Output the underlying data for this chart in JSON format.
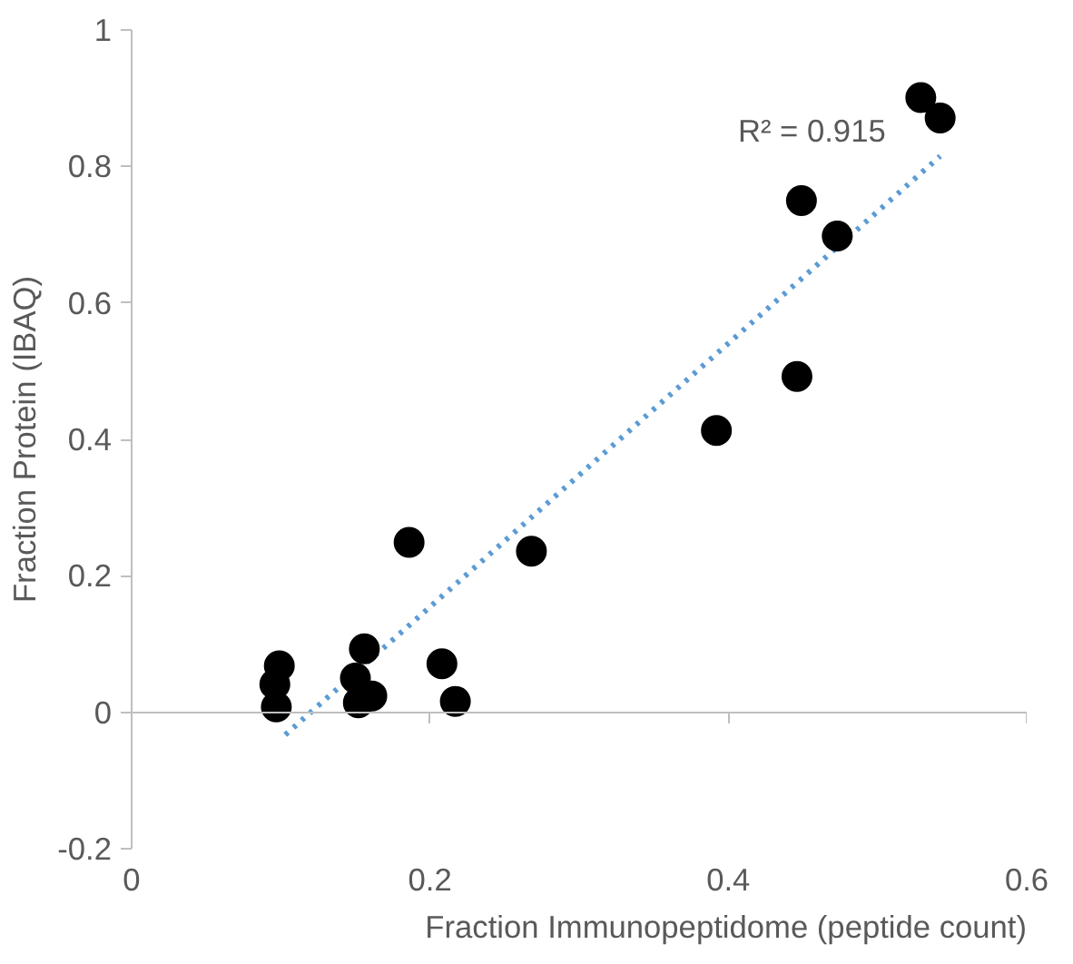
{
  "chart_data": {
    "type": "scatter",
    "xlabel": "Fraction Immunopeptidome (peptide count)",
    "ylabel": "Fraction Protein (IBAQ)",
    "xlim": [
      0,
      0.6
    ],
    "ylim": [
      -0.2,
      1
    ],
    "xticks": [
      0,
      0.2,
      0.4,
      0.6
    ],
    "yticks": [
      -0.2,
      0,
      0.2,
      0.4,
      0.6,
      0.8,
      1
    ],
    "series": [
      {
        "color": "#000000",
        "marker": "circle",
        "x": [
          0.529,
          0.542,
          0.449,
          0.473,
          0.446,
          0.392,
          0.186,
          0.268,
          0.156,
          0.099,
          0.208,
          0.096,
          0.15,
          0.161,
          0.152,
          0.097,
          0.217
        ],
        "values": [
          0.901,
          0.871,
          0.75,
          0.698,
          0.492,
          0.413,
          0.249,
          0.236,
          0.093,
          0.068,
          0.071,
          0.041,
          0.05,
          0.024,
          0.014,
          0.008,
          0.016
        ]
      },
      {
        "type": "line",
        "color": "#5b9bd5",
        "line_style": "dotted",
        "x": [
          0.103,
          0.542
        ],
        "values": [
          -0.033,
          0.815
        ]
      }
    ],
    "annotations": [
      "R² = 0.915"
    ]
  }
}
